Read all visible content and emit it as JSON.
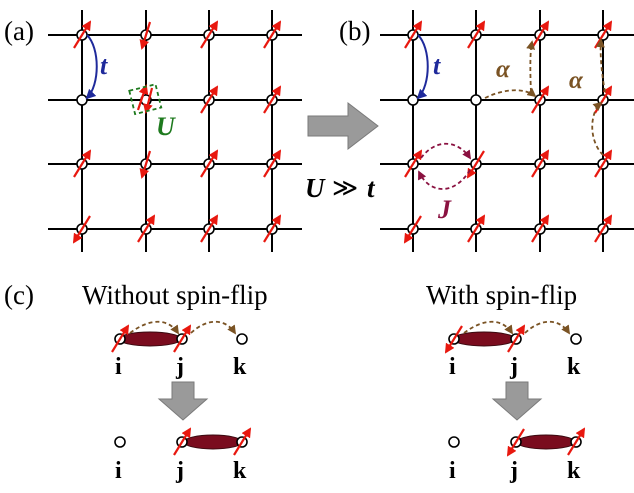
{
  "panels": {
    "a": {
      "label": "(a)",
      "hop": "t",
      "onsite": "U"
    },
    "b": {
      "label": "(b)",
      "hop": "t",
      "alpha_left": "α",
      "alpha_right": "α",
      "exchange": "J"
    },
    "c": {
      "label": "(c)"
    }
  },
  "condition": {
    "lhs": "U",
    "rel": "≫",
    "rhs": "t"
  },
  "sections": {
    "left_title": "Without spin-flip",
    "right_title": "With spin-flip"
  },
  "site_labels": [
    "i",
    "j",
    "k"
  ],
  "colors": {
    "spin": "#e8180f",
    "hop": "#1f2a9b",
    "onsite": "#1e7a1e",
    "exchange": "#8a1140",
    "alpha": "#7a5324",
    "bond": "#7a0c1e",
    "transition_arrow": "#9a9a9a",
    "grid": "#000000"
  }
}
